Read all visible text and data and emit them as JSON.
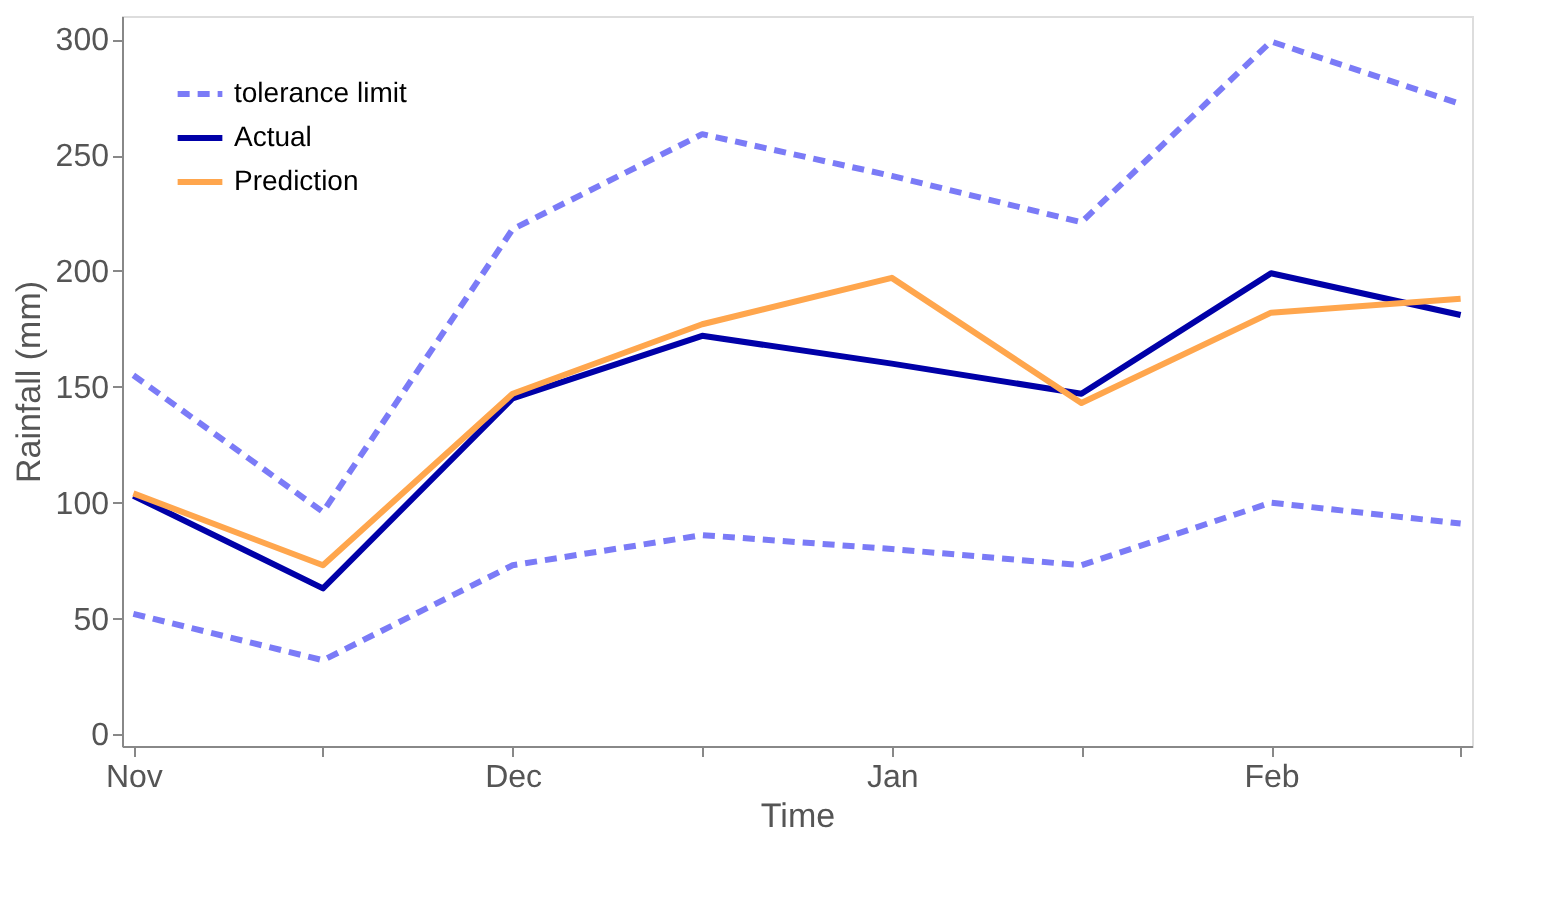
{
  "chart_data": {
    "type": "line",
    "xlabel": "Time",
    "ylabel": "Rainfall (mm)",
    "categories": [
      "Nov",
      null,
      "Dec",
      null,
      "Jan",
      null,
      "Feb",
      null
    ],
    "series": [
      {
        "name": "tolerance limit",
        "color": "#7b7bf7",
        "line_style": "dashed",
        "values": [
          155,
          96,
          218,
          259,
          241,
          221,
          299,
          272
        ]
      },
      {
        "name": "Actual",
        "color": "#0000a8",
        "line_style": "solid",
        "values": [
          103,
          63,
          145,
          172,
          160,
          147,
          199,
          181
        ]
      },
      {
        "name": "Prediction",
        "color": "#ffa64d",
        "line_style": "solid",
        "values": [
          104,
          73,
          147,
          177,
          197,
          143,
          182,
          188
        ]
      },
      {
        "color": "#7b7bf7",
        "line_style": "dashed",
        "values": [
          52,
          32,
          73,
          86,
          80,
          73,
          100,
          91
        ]
      }
    ],
    "ylim": [
      -5,
      310
    ],
    "yticks": [
      0,
      50,
      100,
      150,
      200,
      250,
      300
    ],
    "grid": false,
    "legend": "top left",
    "marker": "none"
  }
}
